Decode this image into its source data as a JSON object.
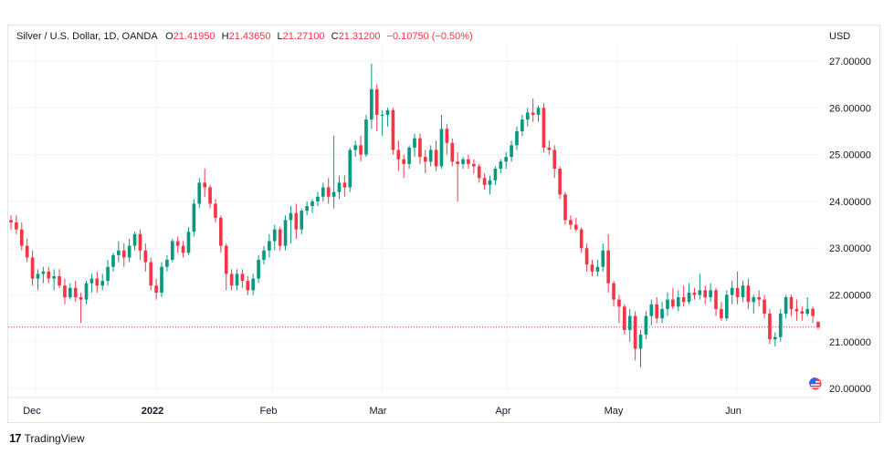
{
  "legend": {
    "symbol": "Silver / U.S. Dollar, 1D, OANDA",
    "o_label": "O",
    "o_value": "21.41950",
    "h_label": "H",
    "h_value": "21.43650",
    "l_label": "L",
    "l_value": "21.27100",
    "c_label": "C",
    "c_value": "21.31200",
    "change": "−0.10750 (−0.50%)"
  },
  "currency": "USD",
  "branding": {
    "logo_mark": "17",
    "name": "TradingView"
  },
  "colors": {
    "up": "#089981",
    "down": "#f23645",
    "grid": "#f0f3fa",
    "price_line": "#f23645"
  },
  "icons": {
    "flag": "us-flag-icon"
  },
  "chart_data": {
    "type": "candlestick",
    "title": "Silver / U.S. Dollar, 1D, OANDA",
    "ylabel": "USD",
    "ylim": [
      19.9,
      27.25
    ],
    "y_ticks": [
      "27.00000",
      "26.00000",
      "25.00000",
      "24.00000",
      "23.00000",
      "22.00000",
      "21.00000",
      "20.00000"
    ],
    "x_labels": [
      "Dec",
      "2022",
      "Feb",
      "Mar",
      "Apr",
      "May",
      "Jun"
    ],
    "last_price": 21.312,
    "grid": true,
    "note": "OHLC values estimated by reading the chart; one candle per trading day from late Nov to late Jun",
    "ohlc": [
      [
        23.6,
        23.7,
        23.4,
        23.55
      ],
      [
        23.55,
        23.7,
        23.3,
        23.4
      ],
      [
        23.4,
        23.55,
        22.95,
        23.05
      ],
      [
        23.05,
        23.2,
        22.7,
        22.8
      ],
      [
        22.8,
        22.95,
        22.2,
        22.35
      ],
      [
        22.35,
        22.55,
        22.1,
        22.45
      ],
      [
        22.45,
        22.6,
        22.25,
        22.5
      ],
      [
        22.5,
        22.6,
        22.25,
        22.35
      ],
      [
        22.35,
        22.55,
        22.1,
        22.4
      ],
      [
        22.4,
        22.55,
        22.15,
        22.2
      ],
      [
        22.2,
        22.35,
        21.8,
        21.95
      ],
      [
        21.95,
        22.25,
        21.9,
        22.15
      ],
      [
        22.15,
        22.3,
        21.85,
        21.95
      ],
      [
        21.95,
        22.05,
        21.4,
        21.9
      ],
      [
        21.9,
        22.3,
        21.8,
        22.25
      ],
      [
        22.25,
        22.45,
        22.05,
        22.35
      ],
      [
        22.35,
        22.5,
        22.05,
        22.2
      ],
      [
        22.2,
        22.45,
        22.1,
        22.3
      ],
      [
        22.3,
        22.75,
        22.2,
        22.6
      ],
      [
        22.6,
        22.9,
        22.5,
        22.85
      ],
      [
        22.85,
        23.15,
        22.7,
        22.95
      ],
      [
        22.95,
        23.1,
        22.6,
        22.8
      ],
      [
        22.8,
        23.2,
        22.7,
        23.05
      ],
      [
        23.05,
        23.35,
        22.95,
        23.3
      ],
      [
        23.3,
        23.4,
        22.75,
        22.95
      ],
      [
        22.95,
        23.1,
        22.5,
        22.7
      ],
      [
        22.7,
        22.8,
        22.1,
        22.2
      ],
      [
        22.2,
        22.35,
        21.9,
        22.05
      ],
      [
        22.05,
        22.7,
        21.95,
        22.6
      ],
      [
        22.6,
        22.85,
        22.5,
        22.75
      ],
      [
        22.75,
        23.2,
        22.7,
        23.15
      ],
      [
        23.15,
        23.25,
        22.9,
        23.05
      ],
      [
        23.05,
        23.15,
        22.8,
        22.9
      ],
      [
        22.9,
        23.45,
        22.85,
        23.35
      ],
      [
        23.35,
        24.05,
        23.25,
        23.95
      ],
      [
        23.95,
        24.5,
        23.85,
        24.4
      ],
      [
        24.4,
        24.7,
        24.1,
        24.3
      ],
      [
        24.3,
        24.35,
        23.85,
        23.95
      ],
      [
        23.95,
        24.05,
        23.55,
        23.65
      ],
      [
        23.65,
        23.7,
        22.9,
        23.05
      ],
      [
        23.05,
        23.1,
        22.1,
        22.45
      ],
      [
        22.45,
        22.55,
        22.1,
        22.2
      ],
      [
        22.2,
        22.55,
        22.1,
        22.45
      ],
      [
        22.45,
        22.55,
        22.15,
        22.3
      ],
      [
        22.3,
        22.4,
        22.0,
        22.1
      ],
      [
        22.1,
        22.45,
        22.0,
        22.35
      ],
      [
        22.35,
        22.85,
        22.25,
        22.75
      ],
      [
        22.75,
        23.05,
        22.65,
        22.95
      ],
      [
        22.95,
        23.3,
        22.8,
        23.15
      ],
      [
        23.15,
        23.5,
        22.95,
        23.4
      ],
      [
        23.4,
        23.45,
        22.95,
        23.05
      ],
      [
        23.05,
        23.7,
        22.95,
        23.6
      ],
      [
        23.6,
        23.9,
        23.1,
        23.75
      ],
      [
        23.75,
        23.95,
        23.2,
        23.4
      ],
      [
        23.4,
        23.85,
        23.3,
        23.8
      ],
      [
        23.8,
        24.0,
        23.7,
        23.9
      ],
      [
        23.9,
        24.05,
        23.75,
        24.0
      ],
      [
        24.0,
        24.2,
        23.9,
        24.1
      ],
      [
        24.1,
        24.4,
        24.0,
        24.3
      ],
      [
        24.3,
        24.5,
        23.95,
        24.1
      ],
      [
        24.1,
        25.4,
        23.85,
        24.2
      ],
      [
        24.2,
        24.55,
        24.05,
        24.4
      ],
      [
        24.4,
        24.55,
        24.1,
        24.3
      ],
      [
        24.3,
        25.15,
        24.2,
        25.1
      ],
      [
        25.1,
        25.3,
        24.95,
        25.2
      ],
      [
        25.2,
        25.4,
        24.85,
        25.0
      ],
      [
        25.0,
        25.85,
        24.95,
        25.75
      ],
      [
        25.75,
        26.95,
        25.55,
        26.4
      ],
      [
        26.4,
        26.5,
        25.5,
        25.85
      ],
      [
        25.85,
        25.95,
        25.4,
        25.85
      ],
      [
        25.85,
        26.0,
        25.6,
        25.95
      ],
      [
        25.95,
        26.0,
        25.0,
        25.1
      ],
      [
        25.1,
        25.3,
        24.65,
        24.9
      ],
      [
        24.9,
        25.0,
        24.5,
        24.8
      ],
      [
        24.8,
        25.2,
        24.7,
        25.15
      ],
      [
        25.15,
        25.45,
        24.95,
        25.35
      ],
      [
        25.35,
        25.45,
        24.8,
        24.95
      ],
      [
        24.95,
        25.1,
        24.6,
        24.85
      ],
      [
        24.85,
        25.2,
        24.75,
        25.1
      ],
      [
        25.1,
        25.3,
        24.65,
        24.75
      ],
      [
        24.75,
        25.85,
        24.7,
        25.55
      ],
      [
        25.55,
        25.65,
        25.0,
        25.25
      ],
      [
        25.25,
        25.35,
        24.75,
        24.85
      ],
      [
        24.85,
        25.05,
        24.0,
        24.8
      ],
      [
        24.8,
        24.95,
        24.7,
        24.9
      ],
      [
        24.9,
        25.0,
        24.7,
        24.8
      ],
      [
        24.8,
        24.9,
        24.6,
        24.75
      ],
      [
        24.75,
        24.8,
        24.4,
        24.5
      ],
      [
        24.5,
        24.6,
        24.25,
        24.35
      ],
      [
        24.35,
        24.55,
        24.15,
        24.45
      ],
      [
        24.45,
        24.75,
        24.35,
        24.7
      ],
      [
        24.7,
        24.9,
        24.6,
        24.85
      ],
      [
        24.85,
        25.05,
        24.7,
        24.95
      ],
      [
        24.95,
        25.3,
        24.85,
        25.2
      ],
      [
        25.2,
        25.6,
        25.1,
        25.5
      ],
      [
        25.5,
        25.85,
        25.4,
        25.75
      ],
      [
        25.75,
        26.0,
        25.6,
        25.9
      ],
      [
        25.9,
        26.2,
        25.7,
        25.85
      ],
      [
        25.85,
        26.05,
        25.7,
        26.0
      ],
      [
        26.0,
        26.1,
        25.05,
        25.15
      ],
      [
        25.15,
        25.3,
        25.0,
        25.1
      ],
      [
        25.1,
        25.2,
        24.5,
        24.7
      ],
      [
        24.7,
        24.75,
        24.05,
        24.15
      ],
      [
        24.15,
        24.2,
        23.5,
        23.6
      ],
      [
        23.6,
        23.7,
        23.4,
        23.5
      ],
      [
        23.5,
        23.65,
        23.35,
        23.4
      ],
      [
        23.4,
        23.45,
        22.9,
        23.0
      ],
      [
        23.0,
        23.1,
        22.5,
        22.65
      ],
      [
        22.65,
        22.75,
        22.4,
        22.5
      ],
      [
        22.5,
        22.75,
        22.4,
        22.6
      ],
      [
        22.6,
        23.1,
        22.5,
        22.95
      ],
      [
        22.95,
        23.3,
        22.05,
        22.25
      ],
      [
        22.25,
        22.3,
        21.75,
        21.9
      ],
      [
        21.9,
        22.0,
        21.4,
        21.75
      ],
      [
        21.75,
        21.8,
        21.15,
        21.25
      ],
      [
        21.25,
        21.7,
        21.0,
        21.55
      ],
      [
        21.55,
        21.65,
        20.6,
        20.85
      ],
      [
        20.85,
        21.25,
        20.45,
        21.15
      ],
      [
        21.15,
        21.65,
        21.05,
        21.55
      ],
      [
        21.55,
        21.9,
        21.35,
        21.8
      ],
      [
        21.8,
        21.95,
        21.4,
        21.5
      ],
      [
        21.5,
        21.85,
        21.4,
        21.7
      ],
      [
        21.7,
        22.05,
        21.55,
        21.9
      ],
      [
        21.9,
        22.15,
        21.7,
        21.75
      ],
      [
        21.75,
        22.1,
        21.65,
        21.95
      ],
      [
        21.95,
        22.2,
        21.75,
        21.85
      ],
      [
        21.85,
        22.25,
        21.8,
        22.05
      ],
      [
        22.05,
        22.15,
        21.9,
        22.0
      ],
      [
        22.0,
        22.45,
        21.9,
        22.1
      ],
      [
        22.1,
        22.2,
        21.8,
        21.95
      ],
      [
        21.95,
        22.25,
        21.85,
        22.1
      ],
      [
        22.1,
        22.15,
        21.55,
        21.7
      ],
      [
        21.7,
        21.85,
        21.45,
        21.5
      ],
      [
        21.5,
        22.1,
        21.45,
        22.0
      ],
      [
        22.0,
        22.3,
        21.8,
        22.15
      ],
      [
        22.15,
        22.5,
        21.8,
        21.95
      ],
      [
        21.95,
        22.3,
        21.85,
        22.2
      ],
      [
        22.2,
        22.35,
        21.7,
        21.85
      ],
      [
        21.85,
        22.0,
        21.6,
        21.95
      ],
      [
        21.95,
        22.1,
        21.75,
        21.9
      ],
      [
        21.9,
        22.0,
        21.5,
        21.6
      ],
      [
        21.6,
        21.7,
        20.95,
        21.05
      ],
      [
        21.05,
        21.2,
        20.9,
        21.1
      ],
      [
        21.1,
        21.7,
        21.0,
        21.6
      ],
      [
        21.6,
        22.0,
        21.5,
        21.95
      ],
      [
        21.95,
        22.0,
        21.55,
        21.7
      ],
      [
        21.7,
        21.9,
        21.45,
        21.65
      ],
      [
        21.65,
        21.75,
        21.45,
        21.6
      ],
      [
        21.6,
        21.95,
        21.55,
        21.7
      ],
      [
        21.7,
        21.75,
        21.4,
        21.55
      ],
      [
        21.42,
        21.44,
        21.27,
        21.31
      ]
    ]
  }
}
